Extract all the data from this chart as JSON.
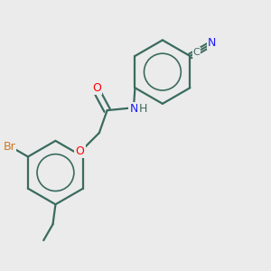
{
  "bg_color": "#ebebeb",
  "bond_color": "#3a6b5e",
  "O_color": "#ff0000",
  "N_color": "#1a1aff",
  "Br_color": "#cc7722",
  "figsize": [
    3.0,
    3.0
  ],
  "dpi": 100,
  "xlim": [
    0,
    10
  ],
  "ylim": [
    0,
    10
  ]
}
